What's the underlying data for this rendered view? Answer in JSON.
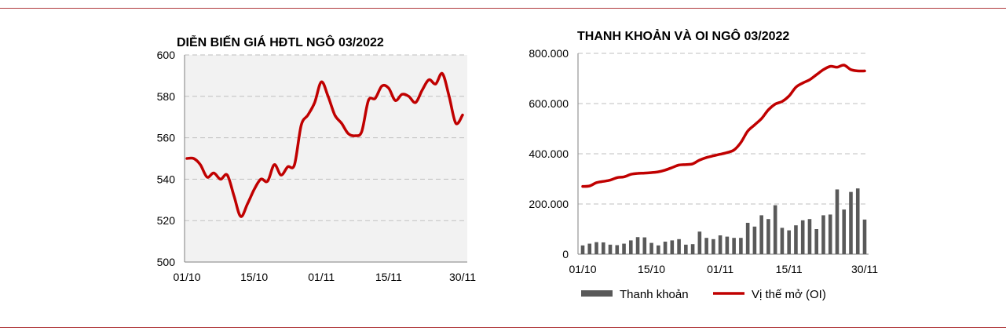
{
  "chart_data": [
    {
      "type": "line",
      "title": "DIỄN BIẾN GIÁ HĐTL NGÔ 03/2022",
      "xlabel": "",
      "ylabel": "",
      "ylim": [
        500,
        600
      ],
      "yticks": [
        500,
        520,
        540,
        560,
        580,
        600
      ],
      "xtick_labels": [
        "01/10",
        "15/10",
        "01/11",
        "15/11",
        "30/11"
      ],
      "grid": "horizontal-dashed",
      "colors": {
        "line": "#c00000",
        "plot_bg": "#f2f2f2",
        "grid": "#bfbfbf"
      },
      "series": [
        {
          "values": [
            550,
            550,
            547,
            541,
            543,
            540,
            542,
            532,
            522,
            528,
            535,
            540,
            539,
            547,
            542,
            546,
            547,
            566,
            571,
            577,
            587,
            580,
            571,
            567,
            562,
            561,
            563,
            578,
            579,
            585,
            584,
            578,
            581,
            580,
            577,
            583,
            588,
            586,
            591,
            580,
            567,
            571
          ]
        }
      ]
    },
    {
      "type": "bar+line",
      "title": "THANH KHOẢN VÀ OI NGÔ 03/2022",
      "xlabel": "",
      "ylabel": "",
      "ylim": [
        0,
        800000
      ],
      "yticks": [
        "0",
        "200.000",
        "400.000",
        "600.000",
        "800.000"
      ],
      "xtick_labels": [
        "01/10",
        "15/10",
        "01/11",
        "15/11",
        "30/11"
      ],
      "grid": "horizontal-dashed",
      "legend_position": "bottom",
      "colors": {
        "bar": "#595959",
        "line": "#c00000",
        "grid": "#bfbfbf"
      },
      "series": [
        {
          "name": "Thanh khoản",
          "kind": "bar",
          "values": [
            35000,
            42000,
            48000,
            47000,
            38000,
            36000,
            42000,
            55000,
            68000,
            67000,
            45000,
            35000,
            50000,
            55000,
            60000,
            38000,
            40000,
            90000,
            65000,
            60000,
            75000,
            70000,
            65000,
            65000,
            125000,
            110000,
            155000,
            140000,
            195000,
            105000,
            95000,
            115000,
            135000,
            140000,
            100000,
            155000,
            158000,
            258000,
            178000,
            248000,
            262000,
            138000
          ]
        },
        {
          "name": "Vị thế mở (OI)",
          "kind": "line",
          "values": [
            270000,
            272000,
            285000,
            290000,
            295000,
            305000,
            308000,
            318000,
            322000,
            323000,
            325000,
            328000,
            335000,
            345000,
            355000,
            357000,
            360000,
            375000,
            385000,
            392000,
            398000,
            405000,
            415000,
            445000,
            490000,
            515000,
            540000,
            575000,
            598000,
            608000,
            630000,
            665000,
            682000,
            695000,
            715000,
            735000,
            748000,
            745000,
            753000,
            735000,
            730000,
            730000
          ]
        }
      ]
    }
  ]
}
